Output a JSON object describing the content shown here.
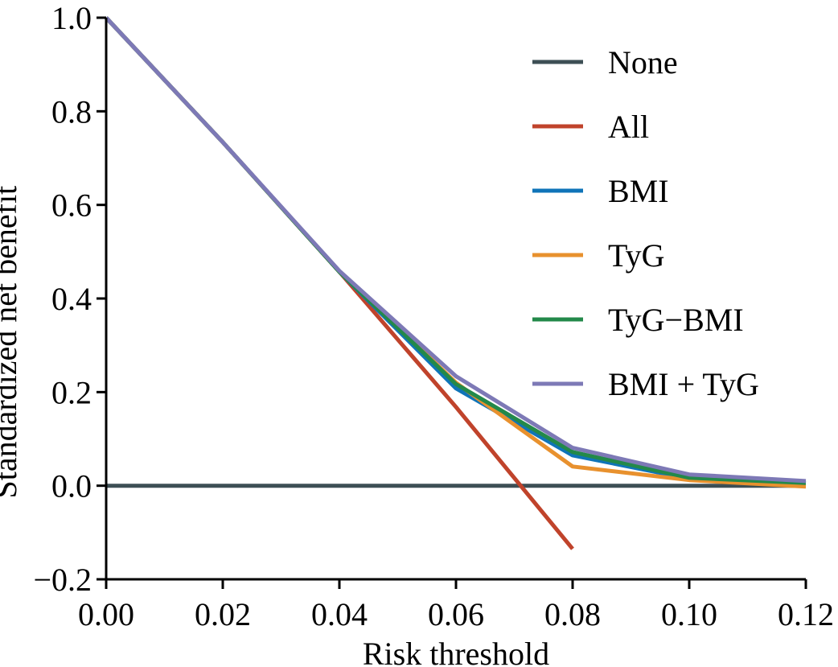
{
  "chart_data": {
    "type": "line",
    "title": "",
    "xlabel": "Risk threshold",
    "ylabel": "Standardized net benefit",
    "xlim": [
      0.0,
      0.12
    ],
    "ylim": [
      -0.2,
      1.0
    ],
    "xticks": [
      0.0,
      0.02,
      0.04,
      0.06,
      0.08,
      0.1,
      0.12
    ],
    "xtick_labels": [
      "0.00",
      "0.02",
      "0.04",
      "0.06",
      "0.08",
      "0.10",
      "0.12"
    ],
    "yticks": [
      -0.2,
      0.0,
      0.2,
      0.4,
      0.6,
      0.8,
      1.0
    ],
    "ytick_labels": [
      "−0.2",
      "0.0",
      "0.2",
      "0.4",
      "0.6",
      "0.8",
      "1.0"
    ],
    "grid": false,
    "legend_position": "top-right",
    "series": [
      {
        "name": "None",
        "color": "#3d4f55",
        "x": [
          0.0,
          0.02,
          0.04,
          0.06,
          0.08,
          0.1,
          0.12
        ],
        "values": [
          0.0,
          0.0,
          0.0,
          0.0,
          0.0,
          0.0,
          0.0
        ]
      },
      {
        "name": "All",
        "color": "#c0432b",
        "x": [
          0.0,
          0.02,
          0.04,
          0.06,
          0.08
        ],
        "values": [
          1.0,
          0.734,
          0.457,
          0.168,
          -0.135
        ]
      },
      {
        "name": "BMI",
        "color": "#0f74b8",
        "x": [
          0.0,
          0.02,
          0.04,
          0.06,
          0.08,
          0.1,
          0.12
        ],
        "values": [
          1.0,
          0.734,
          0.457,
          0.208,
          0.065,
          0.015,
          0.005
        ]
      },
      {
        "name": "TyG",
        "color": "#e8912e",
        "x": [
          0.0,
          0.02,
          0.04,
          0.06,
          0.08,
          0.1,
          0.12
        ],
        "values": [
          1.0,
          0.734,
          0.457,
          0.22,
          0.041,
          0.012,
          -0.002
        ]
      },
      {
        "name": "TyG−BMI",
        "color": "#23894a",
        "x": [
          0.0,
          0.02,
          0.04,
          0.06,
          0.08,
          0.1,
          0.12
        ],
        "values": [
          1.0,
          0.734,
          0.457,
          0.217,
          0.072,
          0.017,
          0.006
        ]
      },
      {
        "name": "BMI + TyG",
        "color": "#7d79b6",
        "x": [
          0.0,
          0.02,
          0.04,
          0.06,
          0.08,
          0.1,
          0.12
        ],
        "values": [
          1.0,
          0.734,
          0.459,
          0.234,
          0.081,
          0.024,
          0.01
        ]
      }
    ]
  }
}
